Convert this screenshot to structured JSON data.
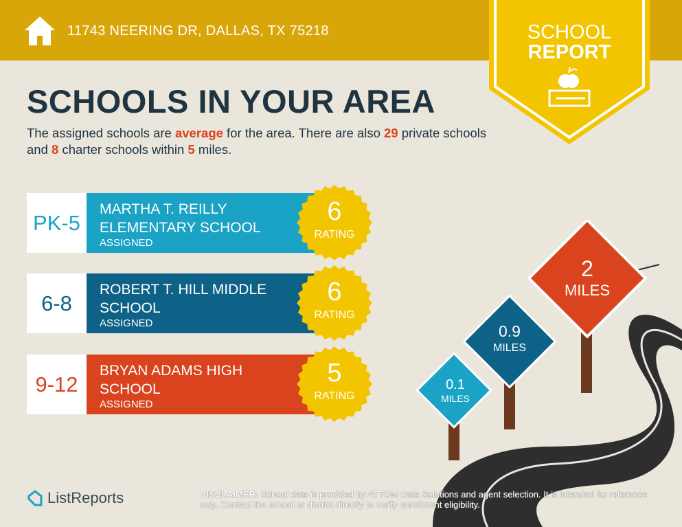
{
  "header": {
    "address": "11743 NEERING DR, DALLAS, TX 75218",
    "icon": "home-icon"
  },
  "banner": {
    "line1": "SCHOOL",
    "line2": "REPORT",
    "icon": "apple-books-icon"
  },
  "title": "SCHOOLS IN YOUR AREA",
  "intro": {
    "p1": "The assigned schools are ",
    "quality": "average",
    "p2": " for the area. There are also ",
    "private_count": "29",
    "p3": " private schools and ",
    "charter_count": "8",
    "p4": " charter schools within ",
    "miles": "5",
    "p5": " miles."
  },
  "schools": [
    {
      "grade": "PK-5",
      "name": "MARTHA T. REILLY ELEMENTARY SCHOOL",
      "status": "ASSIGNED",
      "rating": "6",
      "rating_label": "RATING",
      "color": "#1AA3C5"
    },
    {
      "grade": "6-8",
      "name": "ROBERT T. HILL MIDDLE SCHOOL",
      "status": "ASSIGNED",
      "rating": "6",
      "rating_label": "RATING",
      "color": "#0E6287"
    },
    {
      "grade": "9-12",
      "name": "BRYAN ADAMS HIGH SCHOOL",
      "status": "ASSIGNED",
      "rating": "5",
      "rating_label": "RATING",
      "color": "#D9441F"
    }
  ],
  "signs": [
    {
      "value": "0.1",
      "unit": "MILES",
      "color": "#1AA3C5"
    },
    {
      "value": "0.9",
      "unit": "MILES",
      "color": "#0E6287"
    },
    {
      "value": "2",
      "unit": "MILES",
      "color": "#D9441F"
    }
  ],
  "footer": {
    "logo": "ListReports",
    "disclaimer_label": "DISCLAIMER:",
    "disclaimer": " School data is provided by ATTOM Data Solutions and agent selection. It is intended for reference only. Contact the school or district directly to verify enrollment eligibility."
  },
  "colors": {
    "header": "#D9A60A",
    "banner": "#F2C500",
    "navy": "#1F3440",
    "accent": "#D9441F",
    "background": "#EAE6DC"
  }
}
